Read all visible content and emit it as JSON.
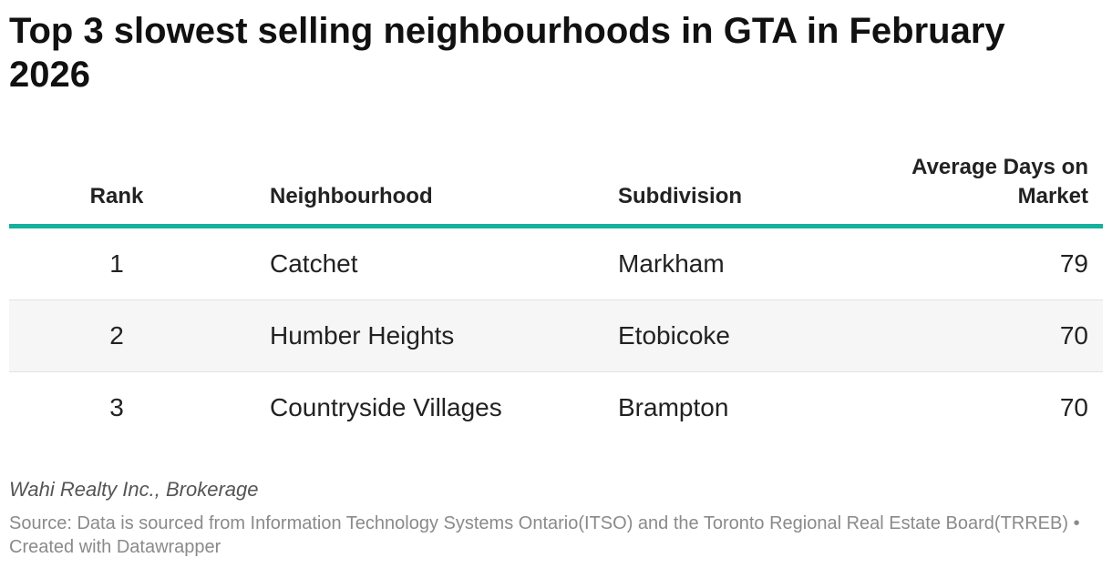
{
  "colors": {
    "accent": "#15b19c",
    "row_shade": "#f6f6f6",
    "divider": "#e3e3e3",
    "text": "#222222",
    "footnote": "#8a8a8a"
  },
  "chart_data": {
    "type": "table",
    "title": "Top 3 slowest selling neighbourhoods in GTA in February 2026",
    "columns": [
      "Rank",
      "Neighbourhood",
      "Subdivision",
      "Average Days on Market"
    ],
    "rows": [
      {
        "rank": "1",
        "neighbourhood": "Catchet",
        "subdivision": "Markham",
        "days": "79"
      },
      {
        "rank": "2",
        "neighbourhood": "Humber Heights",
        "subdivision": "Etobicoke",
        "days": "70"
      },
      {
        "rank": "3",
        "neighbourhood": "Countryside Villages",
        "subdivision": "Brampton",
        "days": "70"
      }
    ],
    "byline": "Wahi Realty Inc., Brokerage",
    "source_label": "Source: ",
    "source": "Data is sourced from Information Technology Systems Ontario(ITSO) and the Toronto Regional Real Estate Board(TRREB)",
    "separator": " • ",
    "credit": "Created with Datawrapper"
  }
}
